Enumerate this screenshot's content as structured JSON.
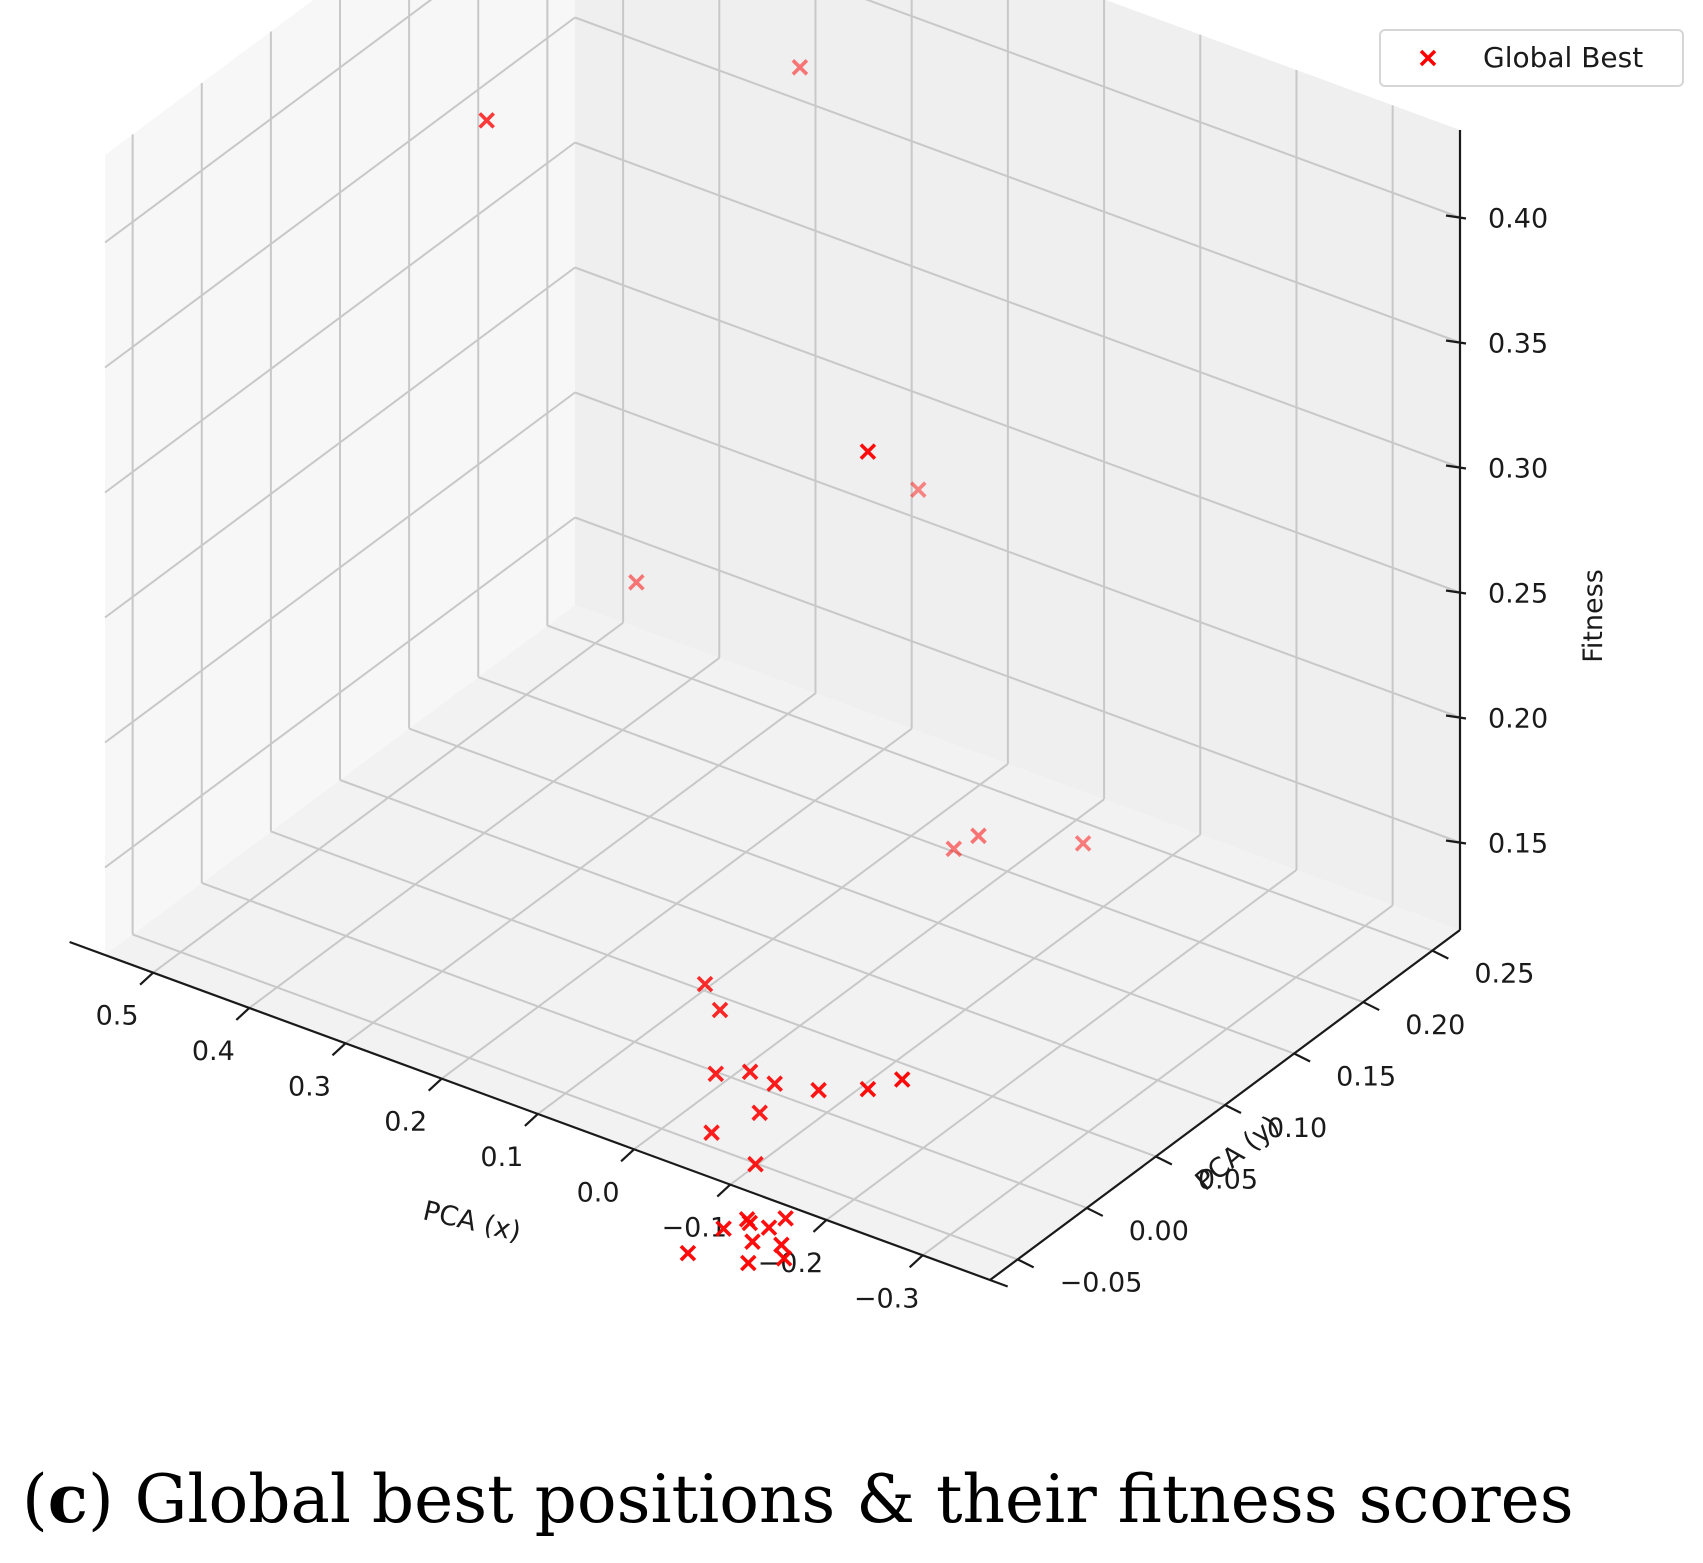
{
  "chart_data": {
    "type": "scatter3d",
    "title": "",
    "xlabel": "PCA (x)",
    "ylabel": "PCA (y)",
    "zlabel": "Fitness",
    "x_ticks": [
      "−0.3",
      "−0.2",
      "−0.1",
      "0.0",
      "0.1",
      "0.2",
      "0.3",
      "0.4",
      "0.5"
    ],
    "y_ticks": [
      "−0.05",
      "0.00",
      "0.05",
      "0.10",
      "0.15",
      "0.20",
      "0.25"
    ],
    "z_ticks": [
      "0.15",
      "0.20",
      "0.25",
      "0.30",
      "0.35",
      "0.40"
    ],
    "xlim": [
      -0.37,
      0.55
    ],
    "ylim": [
      -0.07,
      0.27
    ],
    "zlim": [
      0.115,
      0.435
    ],
    "grid": true,
    "legend": {
      "position": "top-right",
      "entries": [
        "Global Best"
      ]
    },
    "series": [
      {
        "name": "Global Best",
        "marker": "x",
        "color": "#ff0000",
        "points": [
          {
            "x": -0.2,
            "y": -0.04,
            "z": 0.41
          },
          {
            "x": 0.15,
            "y": 0.24,
            "z": 0.23
          },
          {
            "x": 0.23,
            "y": 0.21,
            "z": 0.4
          },
          {
            "x": 0.34,
            "y": 0.06,
            "z": 0.425
          },
          {
            "x": -0.05,
            "y": 0.22,
            "z": 0.125
          },
          {
            "x": 0.03,
            "y": 0.2,
            "z": 0.125
          },
          {
            "x": 0.07,
            "y": 0.21,
            "z": 0.11
          },
          {
            "x": 0.4,
            "y": 0.21,
            "z": 0.17
          },
          {
            "x": -0.25,
            "y": -0.05,
            "z": 0.17
          },
          {
            "x": -0.2,
            "y": -0.04,
            "z": 0.155
          },
          {
            "x": -0.12,
            "y": -0.02,
            "z": 0.135
          },
          {
            "x": -0.06,
            "y": -0.01,
            "z": 0.125
          },
          {
            "x": -0.02,
            "y": 0.0,
            "z": 0.12
          },
          {
            "x": 0.04,
            "y": 0.02,
            "z": 0.128
          },
          {
            "x": 0.07,
            "y": 0.03,
            "z": 0.13
          },
          {
            "x": -0.03,
            "y": 0.0,
            "z": 0.105
          },
          {
            "x": 0.03,
            "y": 0.01,
            "z": 0.108
          },
          {
            "x": 0.02,
            "y": 0.0,
            "z": 0.09
          },
          {
            "x": -0.04,
            "y": -0.01,
            "z": 0.09
          },
          {
            "x": -0.1,
            "y": -0.03,
            "z": 0.085
          },
          {
            "x": -0.09,
            "y": -0.035,
            "z": 0.082
          },
          {
            "x": -0.07,
            "y": -0.035,
            "z": 0.081
          },
          {
            "x": -0.11,
            "y": -0.04,
            "z": 0.08
          },
          {
            "x": -0.06,
            "y": -0.03,
            "z": 0.079
          },
          {
            "x": -0.05,
            "y": -0.04,
            "z": 0.078
          },
          {
            "x": -0.08,
            "y": -0.04,
            "z": 0.077
          },
          {
            "x": -0.12,
            "y": -0.045,
            "z": 0.078
          },
          {
            "x": -0.09,
            "y": -0.05,
            "z": 0.074
          },
          {
            "x": -0.02,
            "y": -0.045,
            "z": 0.066
          }
        ]
      }
    ]
  },
  "caption": {
    "paren_open": "(",
    "letter": "c",
    "text": ") Global best positions & their fitness scores"
  }
}
